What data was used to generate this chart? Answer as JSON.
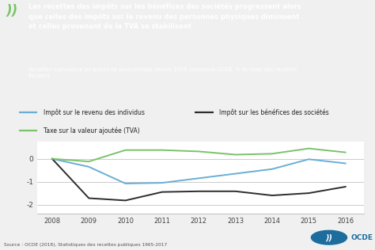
{
  "years": [
    2008,
    2009,
    2010,
    2011,
    2012,
    2013,
    2014,
    2015,
    2016
  ],
  "individus": [
    0.0,
    -0.35,
    -1.08,
    -1.05,
    -0.85,
    -0.65,
    -0.45,
    -0.02,
    -0.2
  ],
  "societes": [
    0.0,
    -1.72,
    -1.82,
    -1.45,
    -1.42,
    -1.42,
    -1.6,
    -1.5,
    -1.22
  ],
  "tva": [
    0.0,
    -0.12,
    0.38,
    0.38,
    0.32,
    0.18,
    0.22,
    0.45,
    0.28
  ],
  "color_individus": "#6aaed6",
  "color_societes": "#2d2d2d",
  "color_tva": "#7ac36a",
  "title_line1": "Les recettes des impôts sur les bénéfices des sociétés progressent alors",
  "title_line2": "que celles des impôts sur le revenu des personnes physiques diminuent",
  "title_line3": "et celles provenant de la TVA se stabilisent",
  "subtitle": "Variation cumulative en points de pourcentage depuis 2008 (moyenne OCDE, % du total des recettes\nfiscales)",
  "legend_individus": "Impôt sur le revenu des individus",
  "legend_societes": "Impôt sur les bénéfices des sociétés",
  "legend_tva": "Taxe sur la valeur ajoutée (TVA)",
  "source": "Source : OCDE (2018), Statistiques des recettes publiques 1965-2017",
  "ylim": [
    -2.4,
    0.75
  ],
  "yticks": [
    -2,
    -1,
    0
  ],
  "header_bg": "#1c6c9e",
  "header_text": "#ffffff",
  "plot_bg": "#ffffff",
  "fig_bg": "#f0f0f0",
  "chevron_color": "#7ac36a"
}
